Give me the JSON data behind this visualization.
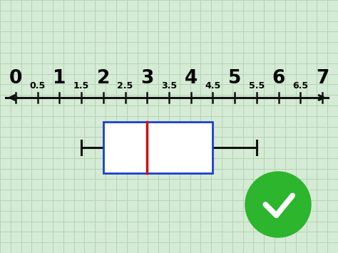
{
  "bg_color": "#d5ebd5",
  "grid_color": "#b5d4b5",
  "q1": 2.0,
  "median": 3.0,
  "q3": 4.5,
  "whisker_min": 1.5,
  "whisker_max": 5.5,
  "box_color": "#1a3fcc",
  "median_color": "#cc1111",
  "whisker_color": "#111111",
  "line_color": "#111111",
  "integer_labels": [
    "0",
    "1",
    "2",
    "3",
    "4",
    "5",
    "6",
    "7"
  ],
  "integer_positions": [
    0,
    1,
    2,
    3,
    4,
    5,
    6,
    7
  ],
  "half_labels": [
    "0.5",
    "1.5",
    "2.5",
    "3.5",
    "4.5",
    "5.5",
    "6.5"
  ],
  "half_positions": [
    0.5,
    1.5,
    2.5,
    3.5,
    4.5,
    5.5,
    6.5
  ],
  "check_circle_color": "#2db52d",
  "check_color": "#ffffff"
}
